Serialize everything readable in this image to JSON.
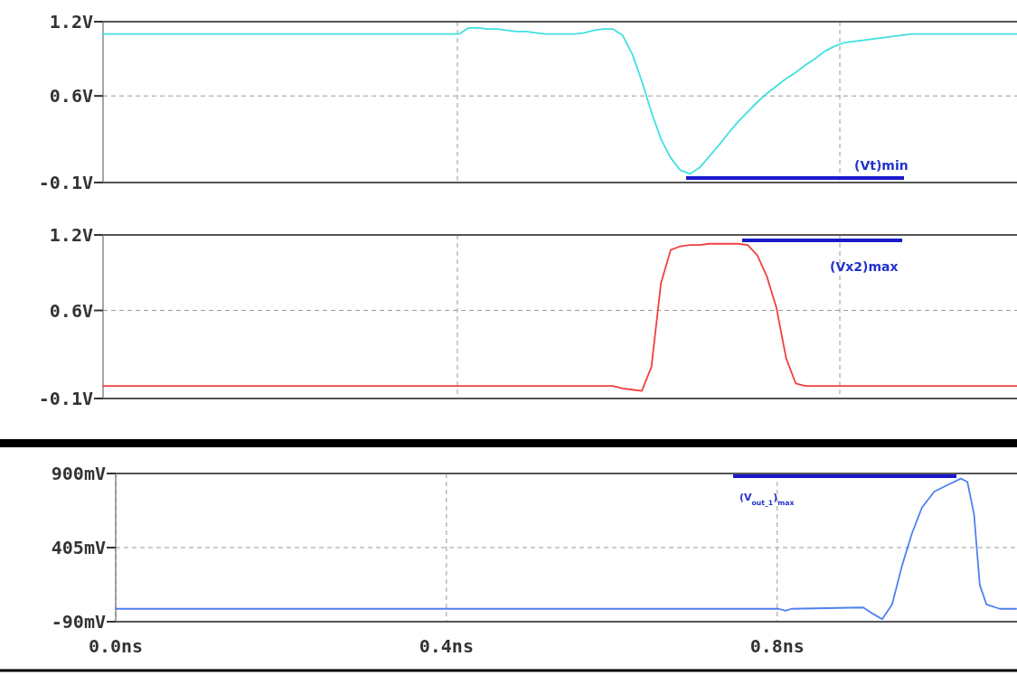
{
  "chart_data": [
    {
      "type": "line",
      "categories": [
        null,
        null,
        null,
        null,
        null,
        null,
        null,
        null,
        null,
        null,
        null,
        null,
        null,
        null,
        null,
        null,
        null,
        null,
        null,
        null,
        null,
        null,
        null,
        null,
        null,
        null,
        null,
        null,
        null,
        null,
        null,
        null,
        null,
        null,
        null,
        null,
        null,
        null,
        null,
        null,
        null,
        null,
        null,
        null,
        null,
        null,
        null,
        null,
        null,
        null,
        null,
        null,
        null,
        null,
        null,
        null,
        null,
        null,
        null,
        null,
        null,
        null,
        null,
        null,
        null,
        null,
        null,
        null,
        null,
        null,
        null,
        null,
        null,
        null,
        null,
        null,
        null,
        null,
        null,
        null,
        null,
        null,
        null,
        null,
        null,
        null,
        null,
        null,
        null,
        null,
        null,
        null,
        null,
        null,
        null,
        null
      ],
      "ylim": [
        -0.1,
        1.2
      ],
      "yticks": [
        {
          "value": 1.2,
          "label": "1.2V"
        },
        {
          "value": 0.6,
          "label": "0.6V"
        },
        {
          "value": -0.1,
          "label": "-0.1V"
        }
      ],
      "tick_labels": "y",
      "grid": "y",
      "line_style": "solid",
      "series": [
        {
          "color": "#40e0e0",
          "values": [
            1.1,
            1.1,
            1.1,
            1.1,
            1.1,
            1.1,
            1.1,
            1.1,
            1.1,
            1.1,
            1.1,
            1.1,
            1.1,
            1.1,
            1.1,
            1.1,
            1.1,
            1.1,
            1.1,
            1.1,
            1.1,
            1.1,
            1.1,
            1.1,
            1.1,
            1.1,
            1.1,
            1.1,
            1.1,
            1.1,
            1.1,
            1.1,
            1.1,
            1.1,
            1.1,
            1.1,
            1.1,
            1.1,
            1.15,
            1.15,
            1.14,
            1.14,
            1.13,
            1.12,
            1.12,
            1.11,
            1.1,
            1.1,
            1.1,
            1.1,
            1.11,
            1.13,
            1.14,
            1.14,
            1.09,
            0.94,
            0.72,
            0.47,
            0.25,
            0.1,
            0.0,
            -0.03,
            0.02,
            0.11,
            0.2,
            0.3,
            0.39,
            0.47,
            0.55,
            0.62,
            0.68,
            0.74,
            0.79,
            0.85,
            0.9,
            0.96,
            1.0,
            1.03,
            1.04,
            1.05,
            1.06,
            1.07,
            1.08,
            1.09,
            1.1,
            1.1,
            1.1,
            1.1,
            1.1,
            1.1,
            1.1,
            1.1,
            1.1,
            1.1,
            1.1,
            1.1
          ]
        }
      ],
      "annotations": [
        "(Vt)min"
      ]
    },
    {
      "type": "line",
      "categories": [
        null,
        null,
        null,
        null,
        null,
        null,
        null,
        null,
        null,
        null,
        null,
        null,
        null,
        null,
        null,
        null,
        null,
        null,
        null,
        null,
        null,
        null,
        null,
        null,
        null,
        null,
        null,
        null,
        null,
        null,
        null,
        null,
        null,
        null,
        null,
        null,
        null,
        null,
        null,
        null,
        null,
        null,
        null,
        null,
        null,
        null,
        null,
        null,
        null,
        null,
        null,
        null,
        null,
        null,
        null,
        null,
        null,
        null,
        null,
        null,
        null,
        null,
        null,
        null,
        null,
        null,
        null,
        null,
        null,
        null,
        null,
        null,
        null,
        null,
        null,
        null,
        null,
        null,
        null,
        null,
        null,
        null,
        null,
        null,
        null,
        null,
        null,
        null,
        null,
        null,
        null,
        null,
        null,
        null,
        null,
        null
      ],
      "ylim": [
        -0.1,
        1.2
      ],
      "yticks": [
        {
          "value": 1.2,
          "label": "1.2V"
        },
        {
          "value": 0.6,
          "label": "0.6V"
        },
        {
          "value": -0.1,
          "label": "-0.1V"
        }
      ],
      "tick_labels": "y",
      "grid": "y",
      "line_style": "solid",
      "series": [
        {
          "color": "#f04040",
          "values": [
            0.0,
            0.0,
            0.0,
            0.0,
            0.0,
            0.0,
            0.0,
            0.0,
            0.0,
            0.0,
            0.0,
            0.0,
            0.0,
            0.0,
            0.0,
            0.0,
            0.0,
            0.0,
            0.0,
            0.0,
            0.0,
            0.0,
            0.0,
            0.0,
            0.0,
            0.0,
            0.0,
            0.0,
            0.0,
            0.0,
            0.0,
            0.0,
            0.0,
            0.0,
            0.0,
            0.0,
            0.0,
            0.0,
            0.0,
            0.0,
            0.0,
            0.0,
            0.0,
            0.0,
            0.0,
            0.0,
            0.0,
            0.0,
            0.0,
            0.0,
            0.0,
            0.0,
            0.0,
            0.0,
            -0.02,
            -0.03,
            -0.04,
            0.15,
            0.82,
            1.08,
            1.11,
            1.12,
            1.12,
            1.13,
            1.13,
            1.13,
            1.13,
            1.12,
            1.04,
            0.87,
            0.62,
            0.22,
            0.02,
            0.0,
            0.0,
            0.0,
            0.0,
            0.0,
            0.0,
            0.0,
            0.0,
            0.0,
            0.0,
            0.0,
            0.0,
            0.0,
            0.0,
            0.0,
            0.0,
            0.0,
            0.0,
            0.0,
            0.0,
            0.0,
            0.0,
            0.0
          ]
        }
      ],
      "annotations": [
        "(Vx2)max"
      ]
    },
    {
      "type": "line",
      "xlim": [
        0,
        1.09
      ],
      "xticks": [
        {
          "value": 0,
          "label": "0.0ns"
        },
        {
          "value": 0.4,
          "label": "0.4ns"
        },
        {
          "value": 0.8,
          "label": "0.8ns"
        }
      ],
      "ylim": [
        -90,
        900
      ],
      "yticks": [
        {
          "value": 900,
          "label": "900mV"
        },
        {
          "value": 405,
          "label": "405mV"
        },
        {
          "value": -90,
          "label": "-90mV"
        }
      ],
      "grid": true,
      "line_style": "solid",
      "series": [
        {
          "color": "#5080f0",
          "x": [
            0,
            0.802,
            0.81,
            0.817,
            0.904,
            0.916,
            0.927,
            0.939,
            0.951,
            0.963,
            0.975,
            0.99,
            1.006,
            1.022,
            1.03,
            1.038,
            1.045,
            1.053,
            1.069,
            1.089
          ],
          "values": [
            -4,
            -4,
            -17,
            -4,
            5,
            -38,
            -73,
            26,
            285,
            500,
            672,
            779,
            823,
            866,
            844,
            629,
            155,
            26,
            -4,
            -4
          ]
        }
      ],
      "annotations": [
        "(V$_{out_1}$)$_{max}$"
      ]
    }
  ]
}
